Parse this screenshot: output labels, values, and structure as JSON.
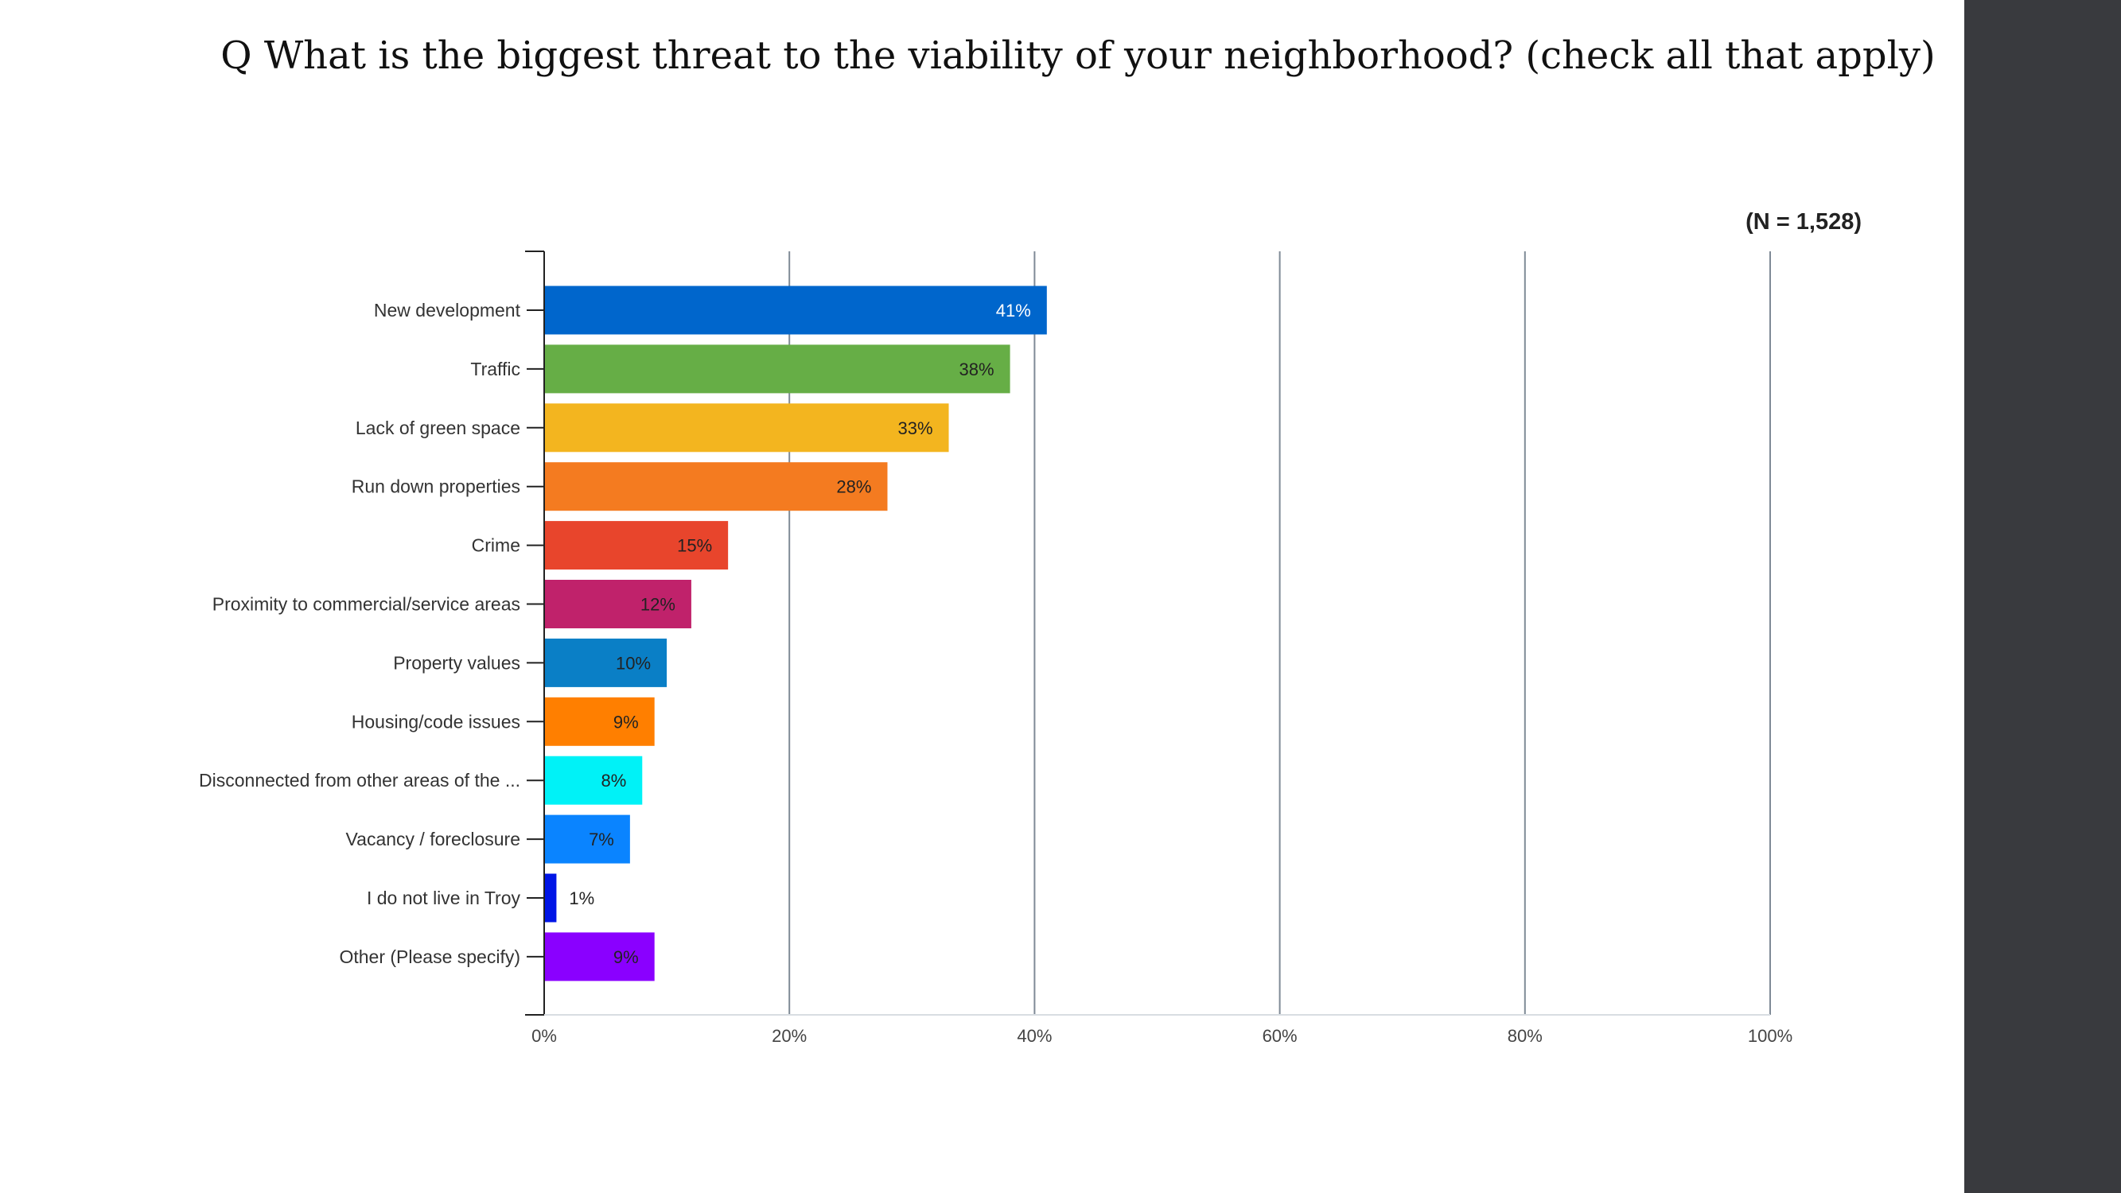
{
  "slide": {
    "question": "Q What is the biggest threat to the viability of your neighborhood? (check all that apply)",
    "sample_size": "(N = 1,528)"
  },
  "chart_data": {
    "type": "bar",
    "orientation": "horizontal",
    "categories": [
      "New development",
      "Traffic",
      "Lack of green space",
      "Run down properties",
      "Crime",
      "Proximity to commercial/service areas",
      "Property values",
      "Housing/code issues",
      "Disconnected from other areas of the ...",
      "Vacancy / foreclosure",
      "I do not live in Troy",
      "Other (Please specify)"
    ],
    "values": [
      41,
      38,
      33,
      28,
      15,
      12,
      10,
      9,
      8,
      7,
      1,
      9
    ],
    "data_labels": [
      "41%",
      "38%",
      "33%",
      "28%",
      "15%",
      "12%",
      "10%",
      "9%",
      "8%",
      "7%",
      "1%",
      "9%"
    ],
    "colors": [
      "#0066cc",
      "#66ae46",
      "#f3b51f",
      "#f47b20",
      "#e8452c",
      "#c0226b",
      "#0a7fc6",
      "#ff7f00",
      "#00f2f7",
      "#0a84ff",
      "#0015e6",
      "#8a00ff"
    ],
    "label_colors": [
      "#ffffff",
      "#222222",
      "#222222",
      "#222222",
      "#222222",
      "#222222",
      "#222222",
      "#222222",
      "#222222",
      "#222222",
      "#222222",
      "#222222"
    ],
    "xlim": [
      0,
      100
    ],
    "x_ticks": [
      0,
      20,
      40,
      60,
      80,
      100
    ],
    "x_tick_labels": [
      "0%",
      "20%",
      "40%",
      "60%",
      "80%",
      "100%"
    ],
    "grid": true
  }
}
